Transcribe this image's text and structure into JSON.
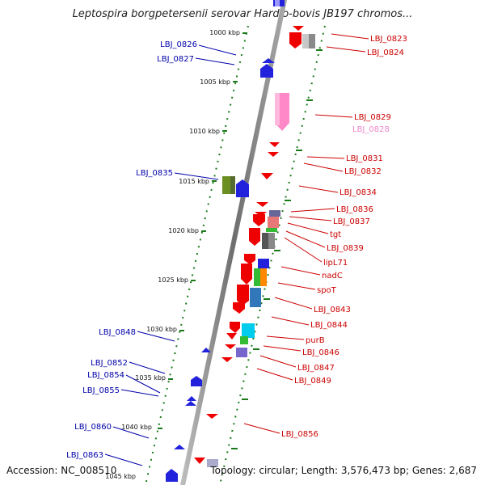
{
  "title": "Leptospira borgpetersenii serovar Hardjo-bovis JB197 chromos...",
  "footer": {
    "accession": "Accession: NC_008510",
    "topology": "Topology: circular; Length: 3,576,473 bp; Genes: 2,687"
  },
  "colors": {
    "forward_label": "#0000aa",
    "reverse_label": "#cc0000",
    "tick_mark": "#1a7a1a",
    "backbone": "#8a8a8a"
  },
  "ruler": {
    "ticks": [
      {
        "label": "1000 kbp"
      },
      {
        "label": "1005 kbp"
      },
      {
        "label": "1010 kbp"
      },
      {
        "label": "1015 kbp"
      },
      {
        "label": "1020 kbp"
      },
      {
        "label": "1025 kbp"
      },
      {
        "label": "1030 kbp"
      },
      {
        "label": "1035 kbp"
      },
      {
        "label": "1040 kbp"
      },
      {
        "label": "1045 kbp"
      }
    ]
  },
  "genes": {
    "forward": [
      {
        "label": "LBJ_0826"
      },
      {
        "label": "LBJ_0827"
      },
      {
        "label": "LBJ_0835"
      },
      {
        "label": "LBJ_0848"
      },
      {
        "label": "LBJ_0852"
      },
      {
        "label": "LBJ_0854"
      },
      {
        "label": "LBJ_0855"
      },
      {
        "label": "LBJ_0860"
      },
      {
        "label": "LBJ_0863"
      }
    ],
    "reverse": [
      {
        "label": "LBJ_0823"
      },
      {
        "label": "LBJ_0824"
      },
      {
        "label": "LBJ_0829"
      },
      {
        "label": "LBJ_0828"
      },
      {
        "label": "LBJ_0831"
      },
      {
        "label": "LBJ_0832"
      },
      {
        "label": "LBJ_0834"
      },
      {
        "label": "LBJ_0836"
      },
      {
        "label": "LBJ_0837"
      },
      {
        "label": "tgt"
      },
      {
        "label": "LBJ_0839"
      },
      {
        "label": "lipL71"
      },
      {
        "label": "nadC"
      },
      {
        "label": "spoT"
      },
      {
        "label": "LBJ_0843"
      },
      {
        "label": "LBJ_0844"
      },
      {
        "label": "purB"
      },
      {
        "label": "LBJ_0846"
      },
      {
        "label": "LBJ_0847"
      },
      {
        "label": "LBJ_0849"
      },
      {
        "label": "LBJ_0856"
      }
    ]
  }
}
